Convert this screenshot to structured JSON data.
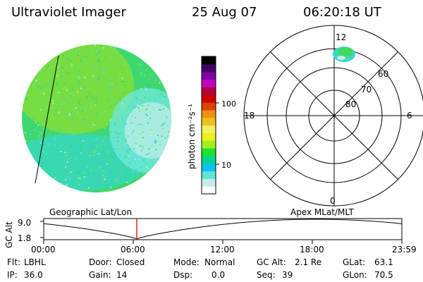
{
  "header": {
    "instrument": "Ultraviolet Imager",
    "date": "25 Aug 07",
    "time": "06:20:18 UT"
  },
  "colorbar": {
    "unit_label": "photon cm⁻²s⁻¹",
    "ticks": [
      "100",
      "10"
    ],
    "scale": "log",
    "colors": [
      "#ffffff",
      "#c8ecec",
      "#5fe6d8",
      "#10c0f0",
      "#00d890",
      "#20e030",
      "#a0f020",
      "#e8f020",
      "#f0f060",
      "#f0c020",
      "#f09010",
      "#e04000",
      "#d00000",
      "#b00040",
      "#c000c0",
      "#8000a0",
      "#400060",
      "#000000"
    ]
  },
  "polar": {
    "mlt_labels": [
      "12",
      "18",
      "6",
      "0"
    ],
    "mlat_labels": [
      "60",
      "70",
      "80"
    ]
  },
  "timeline": {
    "ylabel": "GC Alt",
    "ymax": "9.0",
    "ymin": "1.8",
    "left_title": "Geographic Lat/Lon",
    "right_title": "Apex MLat/MLT",
    "xticks": [
      "00:00",
      "06:00",
      "12:00",
      "18:00",
      "23:59"
    ],
    "marker_color": "#dd0000"
  },
  "status": {
    "row1": [
      {
        "label": "Flt:",
        "value": "LBHL"
      },
      {
        "label": "Door:",
        "value": "Closed"
      },
      {
        "label": "Mode:",
        "value": "Normal"
      },
      {
        "label": "GC Alt:",
        "value": "2.1 Re"
      },
      {
        "label": "GLat:",
        "value": "63.1"
      }
    ],
    "row2": [
      {
        "label": "IP:",
        "value": "36.0"
      },
      {
        "label": "Gain:",
        "value": "14"
      },
      {
        "label": "Dsp:",
        "value": "0.0"
      },
      {
        "label": "Seq:",
        "value": "39"
      },
      {
        "label": "GLon:",
        "value": "70.5"
      }
    ]
  }
}
